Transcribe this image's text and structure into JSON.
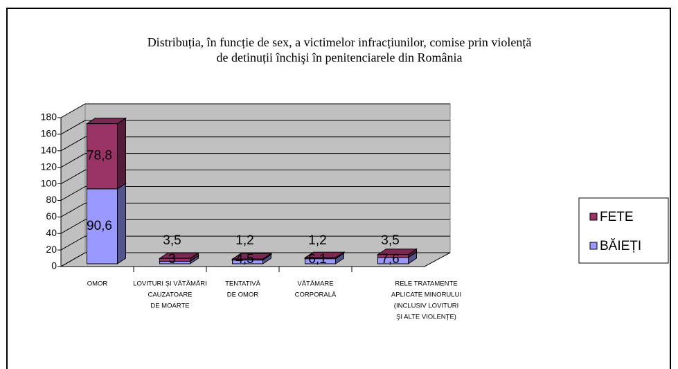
{
  "chart_data": {
    "type": "bar",
    "stacked": true,
    "title": [
      "Distribuția, în funcție de sex, a victimelor infracțiunilor, comise prin violență",
      "de detinuții închişi în penitenciarele din România"
    ],
    "categories": [
      [
        "OMOR"
      ],
      [
        "LOVITURI ŞI VĂTĂMĂRI",
        "CAUZATOARE",
        "DE MOARTE"
      ],
      [
        "TENTATIVĂ",
        "DE OMOR"
      ],
      [
        "VĂTĂMARE",
        "CORPORALĂ"
      ],
      [
        "RELE  TRATAMENTE",
        "APLICATE  MINORULUI",
        "(INCLUSIV LOVITURI",
        "ŞI ALTE VIOLENȚE)"
      ]
    ],
    "series": [
      {
        "name": "BĂIEȚI",
        "color": "#9999ff",
        "values": [
          90.6,
          3,
          4.5,
          6.1,
          7.6
        ],
        "value_labels": [
          "90,6",
          "3",
          "4,5",
          "6,1",
          "7,6"
        ]
      },
      {
        "name": "FETE",
        "color": "#993366",
        "values": [
          78.8,
          3.5,
          1.2,
          1.2,
          3.5
        ],
        "value_labels": [
          "78,8",
          "3,5",
          "1,2",
          "1,2",
          "3,5"
        ]
      }
    ],
    "ylim": [
      0,
      180
    ],
    "yticks": [
      0,
      20,
      40,
      60,
      80,
      100,
      120,
      140,
      160,
      180
    ],
    "grid": true,
    "legend": "right"
  }
}
